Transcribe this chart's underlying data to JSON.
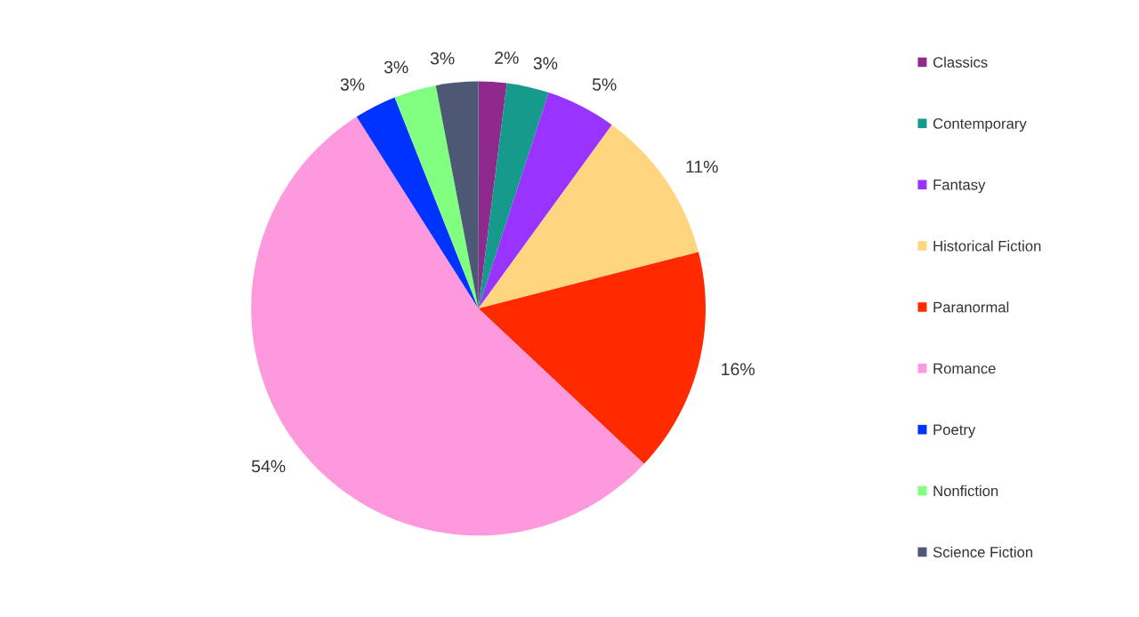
{
  "chart_data": {
    "type": "pie",
    "categories": [
      "Classics",
      "Contemporary",
      "Fantasy",
      "Historical Fiction",
      "Paranormal",
      "Romance",
      "Poetry",
      "Nonfiction",
      "Science Fiction"
    ],
    "values": [
      2,
      3,
      5,
      11,
      16,
      54,
      3,
      3,
      3
    ],
    "colors": [
      "#8e2a8e",
      "#169a8c",
      "#9933ff",
      "#ffd580",
      "#ff2a00",
      "#ff99dd",
      "#0033ff",
      "#80ff80",
      "#4d5875"
    ],
    "value_labels": [
      "2%",
      "3%",
      "5%",
      "11%",
      "16%",
      "54%",
      "3%",
      "3%",
      "3%"
    ],
    "legend": "right"
  }
}
